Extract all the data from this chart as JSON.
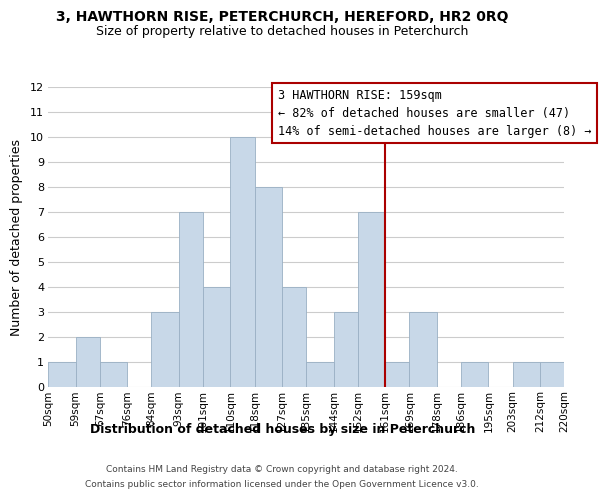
{
  "title": "3, HAWTHORN RISE, PETERCHURCH, HEREFORD, HR2 0RQ",
  "subtitle": "Size of property relative to detached houses in Peterchurch",
  "xlabel": "Distribution of detached houses by size in Peterchurch",
  "ylabel": "Number of detached properties",
  "bin_labels": [
    "50sqm",
    "59sqm",
    "67sqm",
    "76sqm",
    "84sqm",
    "93sqm",
    "101sqm",
    "110sqm",
    "118sqm",
    "127sqm",
    "135sqm",
    "144sqm",
    "152sqm",
    "161sqm",
    "169sqm",
    "178sqm",
    "186sqm",
    "195sqm",
    "203sqm",
    "212sqm",
    "220sqm"
  ],
  "bar_heights": [
    1,
    2,
    1,
    0,
    3,
    7,
    4,
    10,
    8,
    4,
    1,
    3,
    7,
    1,
    3,
    0,
    1,
    0,
    1,
    1
  ],
  "bar_color": "#c8d8e8",
  "bar_edge_color": "#9ab0c4",
  "grid_color": "#cccccc",
  "property_line_color": "#aa0000",
  "annotation_title": "3 HAWTHORN RISE: 159sqm",
  "annotation_line1": "← 82% of detached houses are smaller (47)",
  "annotation_line2": "14% of semi-detached houses are larger (8) →",
  "annotation_box_color": "#ffffff",
  "annotation_border_color": "#aa0000",
  "ylim": [
    0,
    12
  ],
  "yticks": [
    0,
    1,
    2,
    3,
    4,
    5,
    6,
    7,
    8,
    9,
    10,
    11,
    12
  ],
  "footer1": "Contains HM Land Registry data © Crown copyright and database right 2024.",
  "footer2": "Contains public sector information licensed under the Open Government Licence v3.0.",
  "bin_edges": [
    50,
    59,
    67,
    76,
    84,
    93,
    101,
    110,
    118,
    127,
    135,
    144,
    152,
    161,
    169,
    178,
    186,
    195,
    203,
    212,
    220
  ]
}
